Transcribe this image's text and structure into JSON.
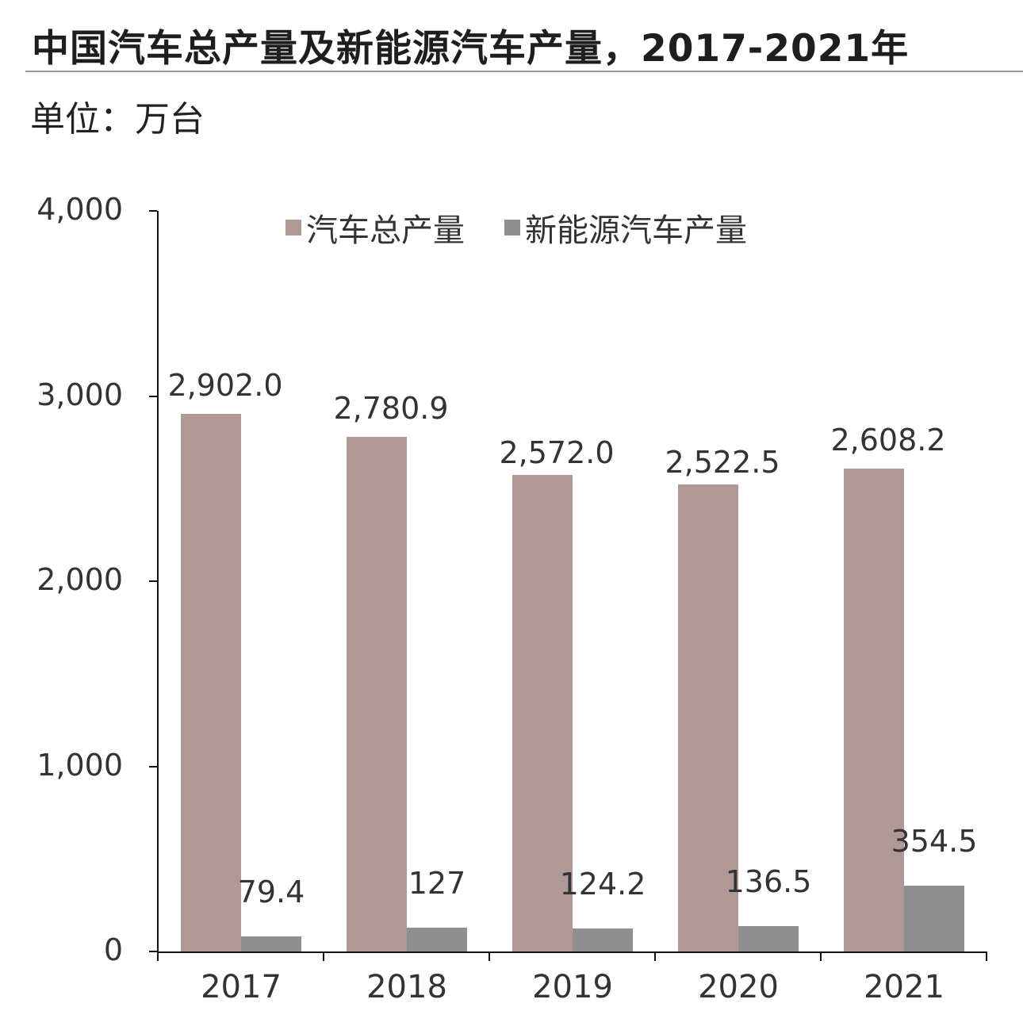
{
  "header": {
    "title": "中国汽车总产量及新能源汽车产量，2017-2021年",
    "unit": "单位：万台"
  },
  "legend": [
    {
      "label": "汽车总产量",
      "color": "#b09896"
    },
    {
      "label": "新能源汽车产量",
      "color": "#8f8f8f"
    }
  ],
  "yaxis": {
    "ticks": [
      "0",
      "1,000",
      "2,000",
      "3,000",
      "4,000"
    ]
  },
  "xaxis": {
    "ticks": [
      "2017",
      "2018",
      "2019",
      "2020",
      "2021"
    ]
  },
  "labels": {
    "total": [
      "2,902.0",
      "2,780.9",
      "2,572.0",
      "2,522.5",
      "2,608.2"
    ],
    "nev": [
      "79.4",
      "127",
      "124.2",
      "136.5",
      "354.5"
    ]
  },
  "chart_data": {
    "type": "bar",
    "title": "中国汽车总产量及新能源汽车产量，2017-2021年",
    "subtitle": "单位：万台",
    "categories": [
      "2017",
      "2018",
      "2019",
      "2020",
      "2021"
    ],
    "series": [
      {
        "name": "汽车总产量",
        "values": [
          2902.0,
          2780.9,
          2572.0,
          2522.5,
          2608.2
        ],
        "color": "#b09896"
      },
      {
        "name": "新能源汽车产量",
        "values": [
          79.4,
          127,
          124.2,
          136.5,
          354.5
        ],
        "color": "#8f8f8f"
      }
    ],
    "xlabel": "",
    "ylabel": "万台",
    "ylim": [
      0,
      4000
    ],
    "yticks": [
      0,
      1000,
      2000,
      3000,
      4000
    ],
    "grid": false,
    "legend_position": "top"
  }
}
